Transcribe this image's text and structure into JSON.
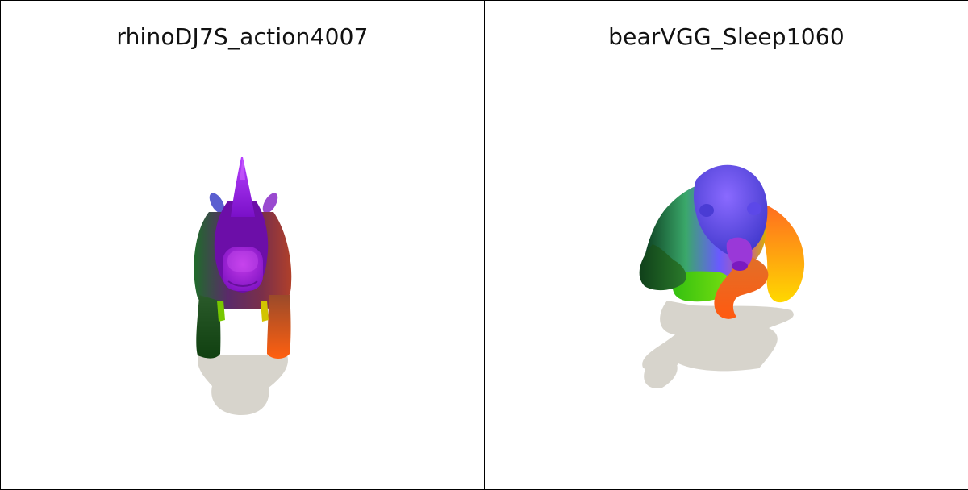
{
  "panels": [
    {
      "title": "rhinoDJ7S_action4007",
      "model": "rhino-3d-model"
    },
    {
      "title": "bearVGG_Sleep1060",
      "model": "bear-3d-model"
    }
  ]
}
